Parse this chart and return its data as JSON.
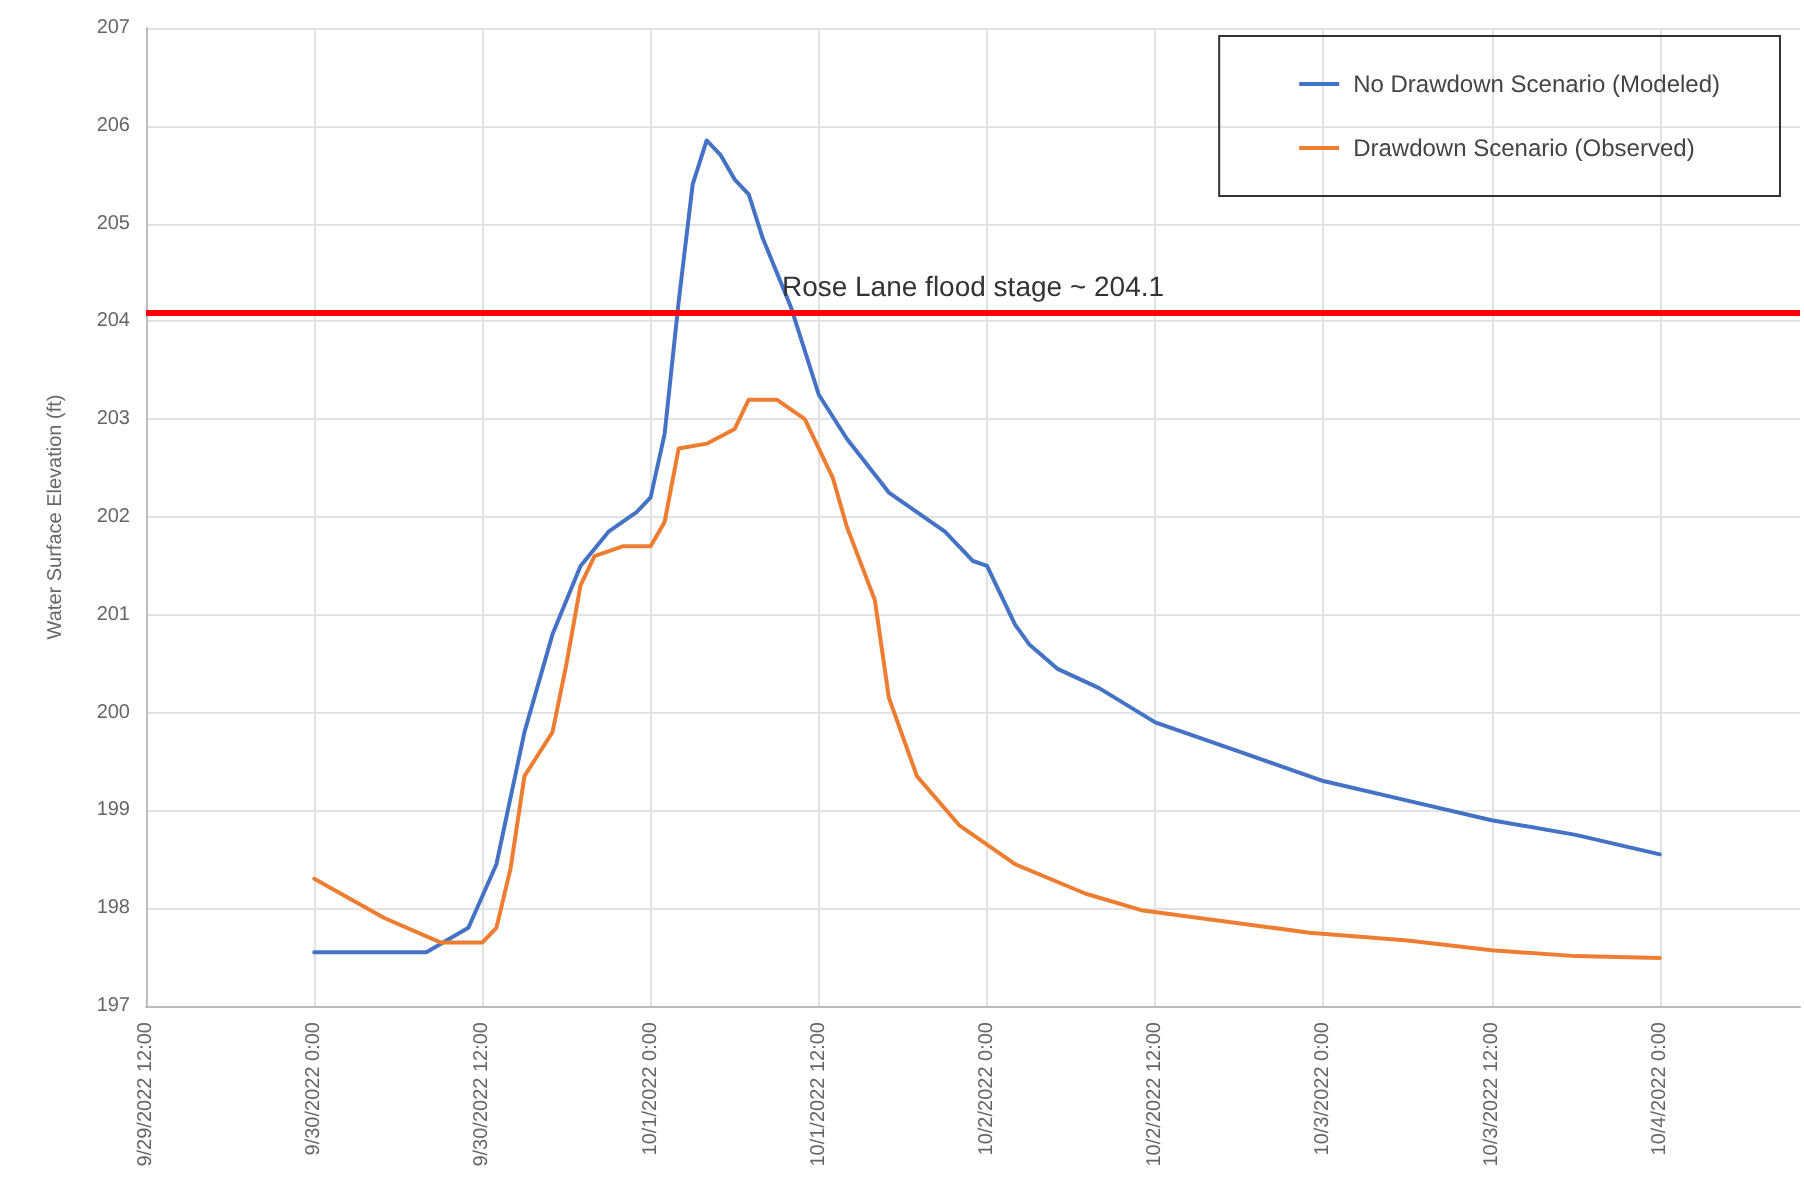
{
  "chart_data": {
    "type": "line",
    "ylabel": "Water Surface Elevation (ft)",
    "xlim": [
      "2022-09-29T12:00",
      "2022-10-04T10:00"
    ],
    "xticks": [
      {
        "value": "2022-09-29T12:00",
        "label": "9/29/2022 12:00"
      },
      {
        "value": "2022-09-30T00:00",
        "label": "9/30/2022 0:00"
      },
      {
        "value": "2022-09-30T12:00",
        "label": "9/30/2022 12:00"
      },
      {
        "value": "2022-10-01T00:00",
        "label": "10/1/2022 0:00"
      },
      {
        "value": "2022-10-01T12:00",
        "label": "10/1/2022 12:00"
      },
      {
        "value": "2022-10-02T00:00",
        "label": "10/2/2022 0:00"
      },
      {
        "value": "2022-10-02T12:00",
        "label": "10/2/2022 12:00"
      },
      {
        "value": "2022-10-03T00:00",
        "label": "10/3/2022 0:00"
      },
      {
        "value": "2022-10-03T12:00",
        "label": "10/3/2022 12:00"
      },
      {
        "value": "2022-10-04T00:00",
        "label": "10/4/2022 0:00"
      }
    ],
    "ylim": [
      197,
      207
    ],
    "yticks": [
      197,
      198,
      199,
      200,
      201,
      202,
      203,
      204,
      205,
      206,
      207
    ],
    "series": [
      {
        "name": "No Drawdown Scenario (Modeled)",
        "color": "#4472c4",
        "x": [
          "2022-09-30T00:00",
          "2022-09-30T08:00",
          "2022-09-30T11:00",
          "2022-09-30T13:00",
          "2022-09-30T15:00",
          "2022-09-30T17:00",
          "2022-09-30T19:00",
          "2022-09-30T21:00",
          "2022-09-30T23:00",
          "2022-10-01T00:00",
          "2022-10-01T01:00",
          "2022-10-01T02:00",
          "2022-10-01T03:00",
          "2022-10-01T04:00",
          "2022-10-01T05:00",
          "2022-10-01T06:00",
          "2022-10-01T07:00",
          "2022-10-01T08:00",
          "2022-10-01T10:00",
          "2022-10-01T12:00",
          "2022-10-01T14:00",
          "2022-10-01T17:00",
          "2022-10-01T21:00",
          "2022-10-01T23:00",
          "2022-10-02T00:00",
          "2022-10-02T02:00",
          "2022-10-02T03:00",
          "2022-10-02T05:00",
          "2022-10-02T08:00",
          "2022-10-02T12:00",
          "2022-10-02T18:00",
          "2022-10-03T00:00",
          "2022-10-03T06:00",
          "2022-10-03T12:00",
          "2022-10-03T18:00",
          "2022-10-04T00:00"
        ],
        "values": [
          197.55,
          197.55,
          197.8,
          198.45,
          199.8,
          200.8,
          201.5,
          201.85,
          202.05,
          202.2,
          202.85,
          204.2,
          205.4,
          205.85,
          205.7,
          205.45,
          205.3,
          204.85,
          204.15,
          203.25,
          202.8,
          202.25,
          201.85,
          201.55,
          201.5,
          200.9,
          200.7,
          200.45,
          200.25,
          199.9,
          199.6,
          199.3,
          199.1,
          198.9,
          198.75,
          198.55
        ]
      },
      {
        "name": "Drawdown Scenario (Observed)",
        "color": "#ed7d31",
        "x": [
          "2022-09-30T00:00",
          "2022-09-30T05:00",
          "2022-09-30T09:00",
          "2022-09-30T12:00",
          "2022-09-30T13:00",
          "2022-09-30T14:00",
          "2022-09-30T15:00",
          "2022-09-30T17:00",
          "2022-09-30T18:00",
          "2022-09-30T19:00",
          "2022-09-30T20:00",
          "2022-09-30T22:00",
          "2022-10-01T00:00",
          "2022-10-01T01:00",
          "2022-10-01T02:00",
          "2022-10-01T04:00",
          "2022-10-01T06:00",
          "2022-10-01T07:00",
          "2022-10-01T09:00",
          "2022-10-01T11:00",
          "2022-10-01T13:00",
          "2022-10-01T14:00",
          "2022-10-01T16:00",
          "2022-10-01T17:00",
          "2022-10-01T19:00",
          "2022-10-01T22:00",
          "2022-10-02T02:00",
          "2022-10-02T07:00",
          "2022-10-02T11:00",
          "2022-10-02T23:00",
          "2022-10-03T06:00",
          "2022-10-03T12:00",
          "2022-10-03T18:00",
          "2022-10-04T00:00"
        ],
        "values": [
          198.3,
          197.9,
          197.65,
          197.65,
          197.8,
          198.4,
          199.35,
          199.8,
          200.5,
          201.3,
          201.6,
          201.7,
          201.7,
          201.95,
          202.7,
          202.75,
          202.9,
          203.2,
          203.2,
          203.0,
          202.4,
          201.9,
          201.15,
          200.15,
          199.35,
          198.85,
          198.45,
          198.15,
          197.98,
          197.75,
          197.67,
          197.57,
          197.51,
          197.49
        ]
      }
    ],
    "ref_lines": [
      {
        "axis": "y",
        "value": 204.1,
        "label": "Rose Lane flood stage ~ 204.1",
        "color": "#ff0000"
      }
    ],
    "grid": true,
    "legend": "top right",
    "marker": "none",
    "line_style": "solid"
  }
}
